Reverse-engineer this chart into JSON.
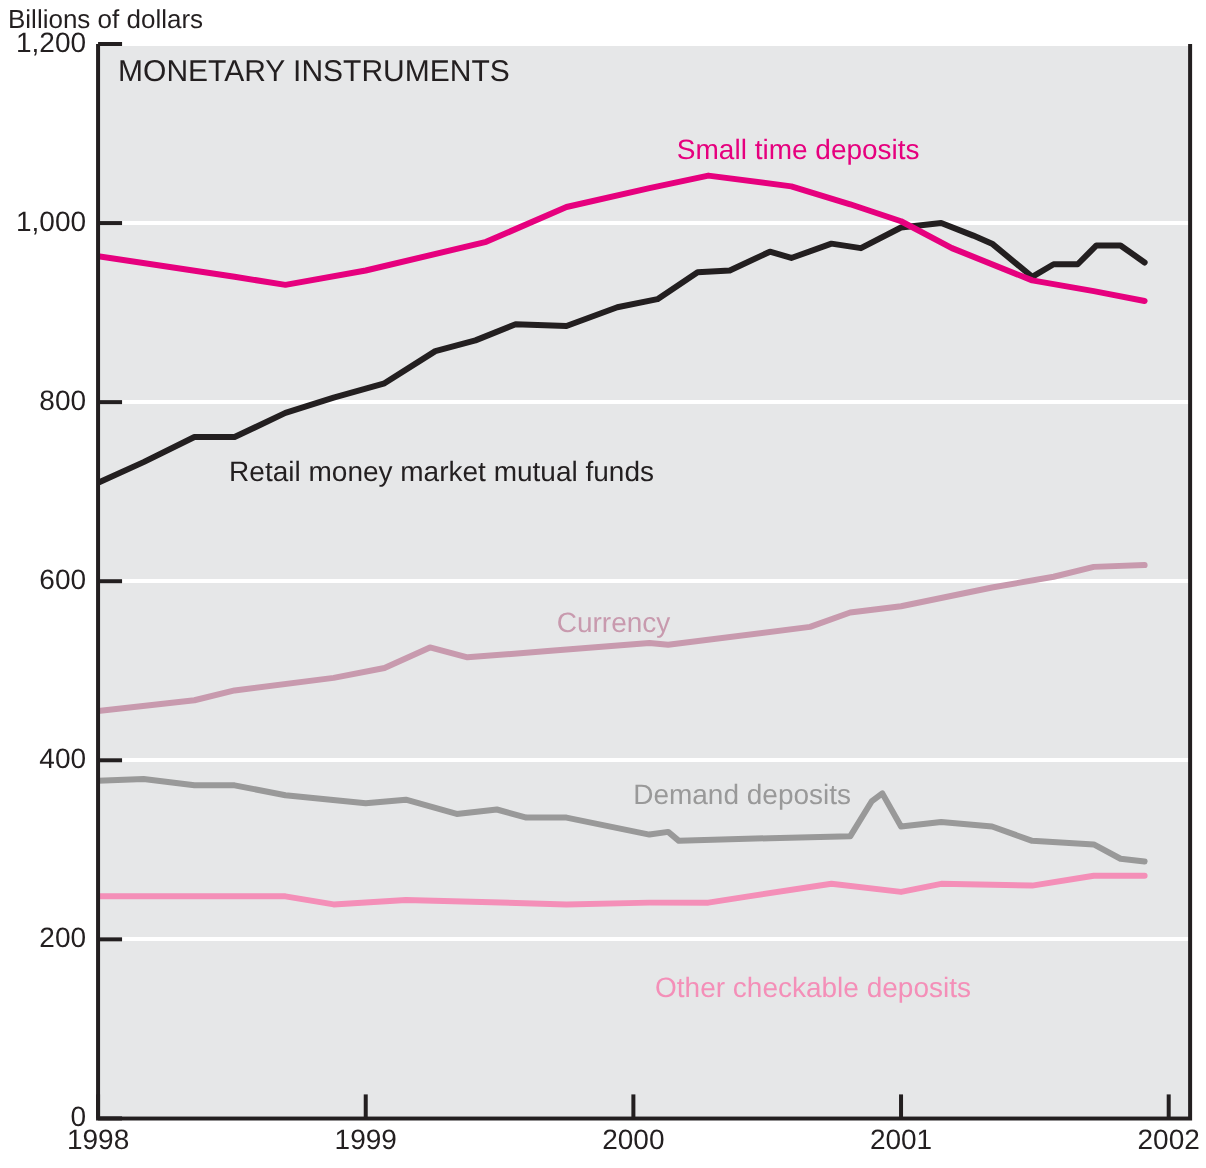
{
  "chart_data": {
    "type": "line",
    "title": "MONETARY INSTRUMENTS",
    "ylabel": "Billions of dollars",
    "xlim": [
      1998,
      2002.08
    ],
    "xticks": [
      1998,
      1999,
      2000,
      2001,
      2002
    ],
    "ylim": [
      0,
      1200
    ],
    "yticks": [
      0,
      200,
      400,
      600,
      800,
      {
        "value": 1000,
        "label": "1,000"
      },
      {
        "value": 1200,
        "label": "1,200"
      }
    ],
    "grid": "y",
    "legend": false,
    "marker": "none",
    "line_style": "solid",
    "series": [
      {
        "name": "Small time deposits",
        "color": "#e6007e",
        "x": [
          1998.0,
          1998.51,
          1998.7,
          1999.0,
          1999.45,
          1999.75,
          2000.06,
          2000.28,
          2000.59,
          2000.81,
          2001.0,
          2001.19,
          2001.49,
          2001.72,
          2001.91
        ],
        "values": [
          963,
          940,
          931,
          947,
          979,
          1018,
          1039,
          1053,
          1041,
          1021,
          1002,
          972,
          936,
          924,
          913
        ]
      },
      {
        "name": "Retail money market mutual funds",
        "color": "#231f20",
        "x": [
          1998.0,
          1998.17,
          1998.36,
          1998.51,
          1998.7,
          1998.88,
          1999.07,
          1999.26,
          1999.41,
          1999.56,
          1999.75,
          1999.94,
          2000.09,
          2000.24,
          2000.36,
          2000.51,
          2000.59,
          2000.74,
          2000.85,
          2001.0,
          2001.15,
          2001.27,
          2001.34,
          2001.49,
          2001.57,
          2001.66,
          2001.73,
          2001.82,
          2001.91
        ],
        "values": [
          710,
          733,
          761,
          761,
          788,
          805,
          821,
          857,
          869,
          887,
          885,
          906,
          915,
          945,
          947,
          968,
          961,
          977,
          972,
          995,
          1000,
          986,
          977,
          940,
          954,
          954,
          975,
          975,
          956
        ]
      },
      {
        "name": "Currency",
        "color": "#c89aae",
        "x": [
          1998.0,
          1998.36,
          1998.51,
          1998.88,
          1999.07,
          1999.24,
          1999.38,
          1999.68,
          2000.06,
          2000.13,
          2000.66,
          2000.81,
          2001.0,
          2001.34,
          2001.57,
          2001.72,
          2001.91
        ],
        "values": [
          455,
          467,
          478,
          492,
          503,
          526,
          515,
          522,
          531,
          529,
          549,
          565,
          572,
          593,
          605,
          616,
          618
        ]
      },
      {
        "name": "Demand deposits",
        "color": "#999999",
        "x": [
          1998.0,
          1998.17,
          1998.36,
          1998.51,
          1998.7,
          1999.0,
          1999.15,
          1999.34,
          1999.49,
          1999.6,
          1999.75,
          2000.06,
          2000.13,
          2000.17,
          2000.51,
          2000.81,
          2000.89,
          2000.93,
          2001.0,
          2001.15,
          2001.34,
          2001.49,
          2001.72,
          2001.82,
          2001.91
        ],
        "values": [
          377,
          379,
          372,
          372,
          361,
          352,
          356,
          340,
          345,
          336,
          336,
          317,
          320,
          310,
          313,
          315,
          354,
          363,
          326,
          331,
          326,
          310,
          306,
          290,
          287
        ]
      },
      {
        "name": "Other checkable deposits",
        "color": "#f48fb8",
        "x": [
          1998.0,
          1998.31,
          1998.7,
          1998.88,
          1999.15,
          1999.75,
          2000.06,
          2000.28,
          2000.43,
          2000.74,
          2001.0,
          2001.15,
          2001.49,
          2001.72,
          2001.91
        ],
        "values": [
          248,
          248,
          248,
          239,
          244,
          239,
          241,
          241,
          248,
          262,
          253,
          262,
          260,
          271,
          271
        ]
      }
    ]
  }
}
